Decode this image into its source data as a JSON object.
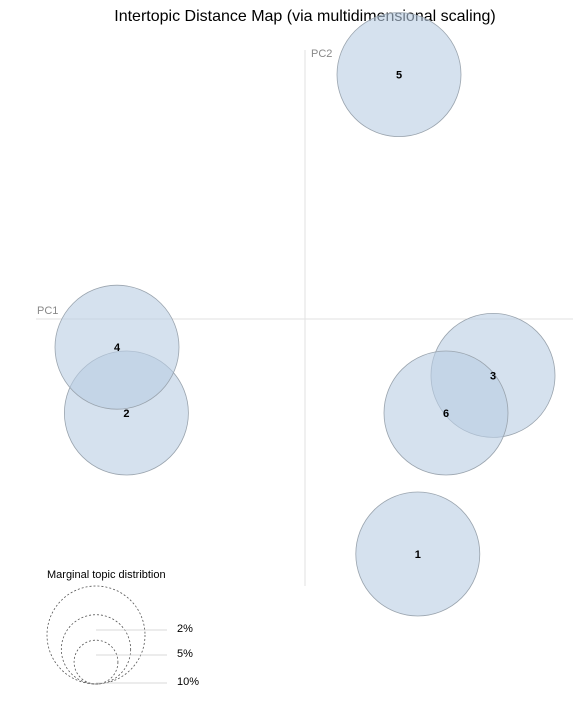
{
  "chart_data": {
    "type": "scatter",
    "title": "Intertopic Distance Map (via multidimensional scaling)",
    "xlabel": "PC1",
    "ylabel": "PC2",
    "xlim": [
      -0.3,
      0.3
    ],
    "ylim": [
      -0.3,
      0.3
    ],
    "grid": false,
    "points": [
      {
        "label": "1",
        "x": 0.12,
        "y": -0.25
      },
      {
        "label": "2",
        "x": -0.19,
        "y": -0.1
      },
      {
        "label": "3",
        "x": 0.2,
        "y": -0.06
      },
      {
        "label": "4",
        "x": -0.2,
        "y": -0.03
      },
      {
        "label": "5",
        "x": 0.1,
        "y": 0.26
      },
      {
        "label": "6",
        "x": 0.15,
        "y": -0.1
      }
    ],
    "size_legend": {
      "title": "Marginal topic distribtion",
      "items": [
        {
          "label": "2%",
          "fraction": 0.02
        },
        {
          "label": "5%",
          "fraction": 0.05
        },
        {
          "label": "10%",
          "fraction": 0.1
        }
      ]
    },
    "colors": {
      "bubble_fill": "#b9cde2",
      "bubble_stroke": "#9aa4ae",
      "axis_line": "#e2e2e2"
    }
  }
}
